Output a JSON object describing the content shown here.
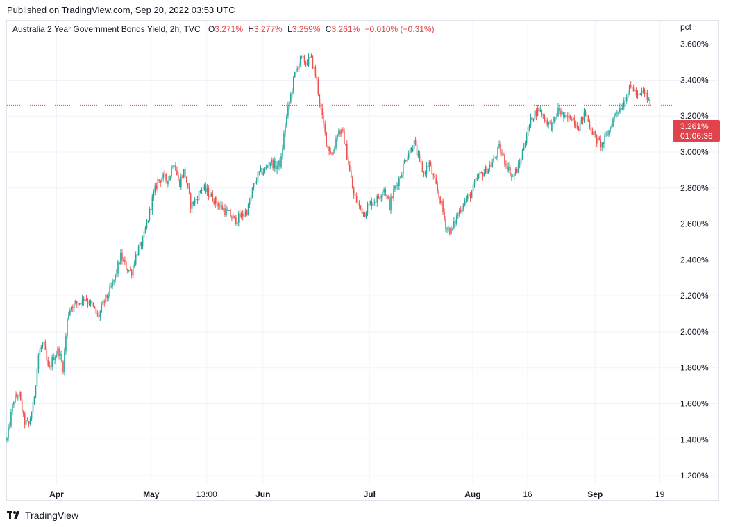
{
  "header": {
    "published_text": "Published on TradingView.com, Sep 20, 2022 03:53 UTC"
  },
  "legend": {
    "symbol_text": "Australia 2 Year Government Bonds Yield, 2h, TVC",
    "open_label": "O",
    "open_value": "3.271%",
    "high_label": "H",
    "high_value": "3.277%",
    "low_label": "L",
    "low_value": "3.259%",
    "close_label": "C",
    "close_value": "3.261%",
    "change_text": "−0.010% (−0.31%)"
  },
  "price_axis": {
    "unit_label": "pct",
    "last_price_label": "3.261%",
    "countdown_label": "01:06:36"
  },
  "footer": {
    "brand_text": "TradingView"
  },
  "colors": {
    "up": "#26a69a",
    "down": "#ef5350",
    "last_price_bg": "#e0434c",
    "grid": "#f0f3fa",
    "axis_text": "#131722"
  },
  "chart_data": {
    "type": "candlestick",
    "title": "Australia 2 Year Government Bonds Yield, 2h, TVC",
    "ylabel": "pct",
    "ylim": [
      1.15,
      3.73
    ],
    "y_ticks": [
      "1.200%",
      "1.400%",
      "1.600%",
      "1.800%",
      "2.000%",
      "2.200%",
      "2.400%",
      "2.600%",
      "2.800%",
      "3.000%",
      "3.200%",
      "3.400%",
      "3.600%"
    ],
    "y_tick_values": [
      1.2,
      1.4,
      1.6,
      1.8,
      2.0,
      2.2,
      2.4,
      2.6,
      2.8,
      3.0,
      3.2,
      3.4,
      3.6
    ],
    "x_ticks": [
      "Apr",
      "May",
      "13:00",
      "Jun",
      "Jul",
      "Aug",
      "16",
      "Sep",
      "19"
    ],
    "x_tick_bold": [
      true,
      true,
      false,
      true,
      true,
      true,
      false,
      true,
      false
    ],
    "x_tick_index": [
      0.075,
      0.218,
      0.302,
      0.387,
      0.548,
      0.704,
      0.787,
      0.889,
      0.987
    ],
    "last_close": 3.261,
    "grid": true,
    "path": [
      [
        0.0,
        1.4
      ],
      [
        0.01,
        1.62
      ],
      [
        0.018,
        1.66
      ],
      [
        0.026,
        1.5
      ],
      [
        0.033,
        1.48
      ],
      [
        0.04,
        1.6
      ],
      [
        0.048,
        1.88
      ],
      [
        0.055,
        1.94
      ],
      [
        0.063,
        1.78
      ],
      [
        0.07,
        1.86
      ],
      [
        0.078,
        1.9
      ],
      [
        0.085,
        1.8
      ],
      [
        0.092,
        2.1
      ],
      [
        0.098,
        2.15
      ],
      [
        0.108,
        2.16
      ],
      [
        0.118,
        2.19
      ],
      [
        0.128,
        2.15
      ],
      [
        0.138,
        2.08
      ],
      [
        0.146,
        2.16
      ],
      [
        0.155,
        2.22
      ],
      [
        0.163,
        2.3
      ],
      [
        0.172,
        2.42
      ],
      [
        0.18,
        2.36
      ],
      [
        0.188,
        2.33
      ],
      [
        0.196,
        2.44
      ],
      [
        0.205,
        2.5
      ],
      [
        0.214,
        2.64
      ],
      [
        0.22,
        2.74
      ],
      [
        0.228,
        2.84
      ],
      [
        0.236,
        2.86
      ],
      [
        0.244,
        2.84
      ],
      [
        0.252,
        2.96
      ],
      [
        0.26,
        2.82
      ],
      [
        0.268,
        2.9
      ],
      [
        0.278,
        2.7
      ],
      [
        0.286,
        2.74
      ],
      [
        0.294,
        2.8
      ],
      [
        0.302,
        2.78
      ],
      [
        0.312,
        2.74
      ],
      [
        0.322,
        2.7
      ],
      [
        0.334,
        2.66
      ],
      [
        0.345,
        2.62
      ],
      [
        0.356,
        2.65
      ],
      [
        0.364,
        2.68
      ],
      [
        0.372,
        2.8
      ],
      [
        0.38,
        2.88
      ],
      [
        0.39,
        2.9
      ],
      [
        0.398,
        2.95
      ],
      [
        0.406,
        2.92
      ],
      [
        0.414,
        2.94
      ],
      [
        0.42,
        3.14
      ],
      [
        0.428,
        3.3
      ],
      [
        0.436,
        3.45
      ],
      [
        0.444,
        3.52
      ],
      [
        0.452,
        3.5
      ],
      [
        0.46,
        3.52
      ],
      [
        0.468,
        3.4
      ],
      [
        0.476,
        3.2
      ],
      [
        0.484,
        3.04
      ],
      [
        0.492,
        2.98
      ],
      [
        0.5,
        3.12
      ],
      [
        0.508,
        3.1
      ],
      [
        0.516,
        2.94
      ],
      [
        0.524,
        2.76
      ],
      [
        0.532,
        2.7
      ],
      [
        0.54,
        2.66
      ],
      [
        0.55,
        2.72
      ],
      [
        0.56,
        2.74
      ],
      [
        0.57,
        2.8
      ],
      [
        0.578,
        2.7
      ],
      [
        0.586,
        2.8
      ],
      [
        0.594,
        2.86
      ],
      [
        0.602,
        2.96
      ],
      [
        0.61,
        3.02
      ],
      [
        0.616,
        3.05
      ],
      [
        0.622,
        2.96
      ],
      [
        0.63,
        2.88
      ],
      [
        0.638,
        2.94
      ],
      [
        0.646,
        2.84
      ],
      [
        0.656,
        2.72
      ],
      [
        0.664,
        2.58
      ],
      [
        0.672,
        2.56
      ],
      [
        0.68,
        2.64
      ],
      [
        0.69,
        2.72
      ],
      [
        0.7,
        2.76
      ],
      [
        0.712,
        2.86
      ],
      [
        0.724,
        2.9
      ],
      [
        0.734,
        2.94
      ],
      [
        0.744,
        3.02
      ],
      [
        0.754,
        2.94
      ],
      [
        0.764,
        2.86
      ],
      [
        0.774,
        2.92
      ],
      [
        0.784,
        3.08
      ],
      [
        0.794,
        3.2
      ],
      [
        0.804,
        3.24
      ],
      [
        0.814,
        3.18
      ],
      [
        0.824,
        3.14
      ],
      [
        0.834,
        3.24
      ],
      [
        0.844,
        3.18
      ],
      [
        0.854,
        3.2
      ],
      [
        0.864,
        3.14
      ],
      [
        0.874,
        3.22
      ],
      [
        0.884,
        3.12
      ],
      [
        0.892,
        3.06
      ],
      [
        0.9,
        3.04
      ],
      [
        0.91,
        3.12
      ],
      [
        0.92,
        3.22
      ],
      [
        0.93,
        3.26
      ],
      [
        0.938,
        3.34
      ],
      [
        0.946,
        3.36
      ],
      [
        0.954,
        3.3
      ],
      [
        0.962,
        3.34
      ],
      [
        0.968,
        3.3
      ],
      [
        0.972,
        3.26
      ]
    ]
  }
}
